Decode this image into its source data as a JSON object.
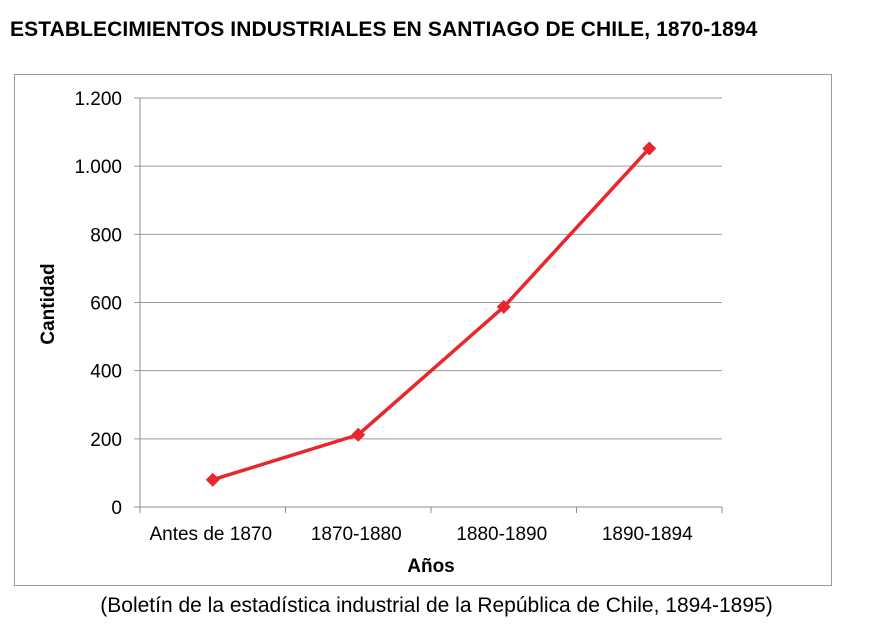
{
  "chart_data": {
    "type": "line",
    "title": "ESTABLECIMIENTOS INDUSTRIALES EN SANTIAGO DE CHILE, 1870-1894",
    "xlabel": "Años",
    "ylabel": "Cantidad",
    "categories": [
      "Antes de 1870",
      "1870-1880",
      "1880-1890",
      "1890-1894"
    ],
    "values": [
      80,
      212,
      587,
      1052
    ],
    "ylim": [
      0,
      1200
    ],
    "yticks": [
      0,
      200,
      400,
      600,
      800,
      1000,
      1200
    ],
    "ytick_labels": [
      "0",
      "200",
      "400",
      "600",
      "800",
      "1.000",
      "1.200"
    ],
    "grid": true,
    "legend": "none",
    "line_color": "#e8262b",
    "marker": "diamond"
  },
  "source_note": "(Boletín de la estadística industrial de la República de Chile, 1894-1895)"
}
